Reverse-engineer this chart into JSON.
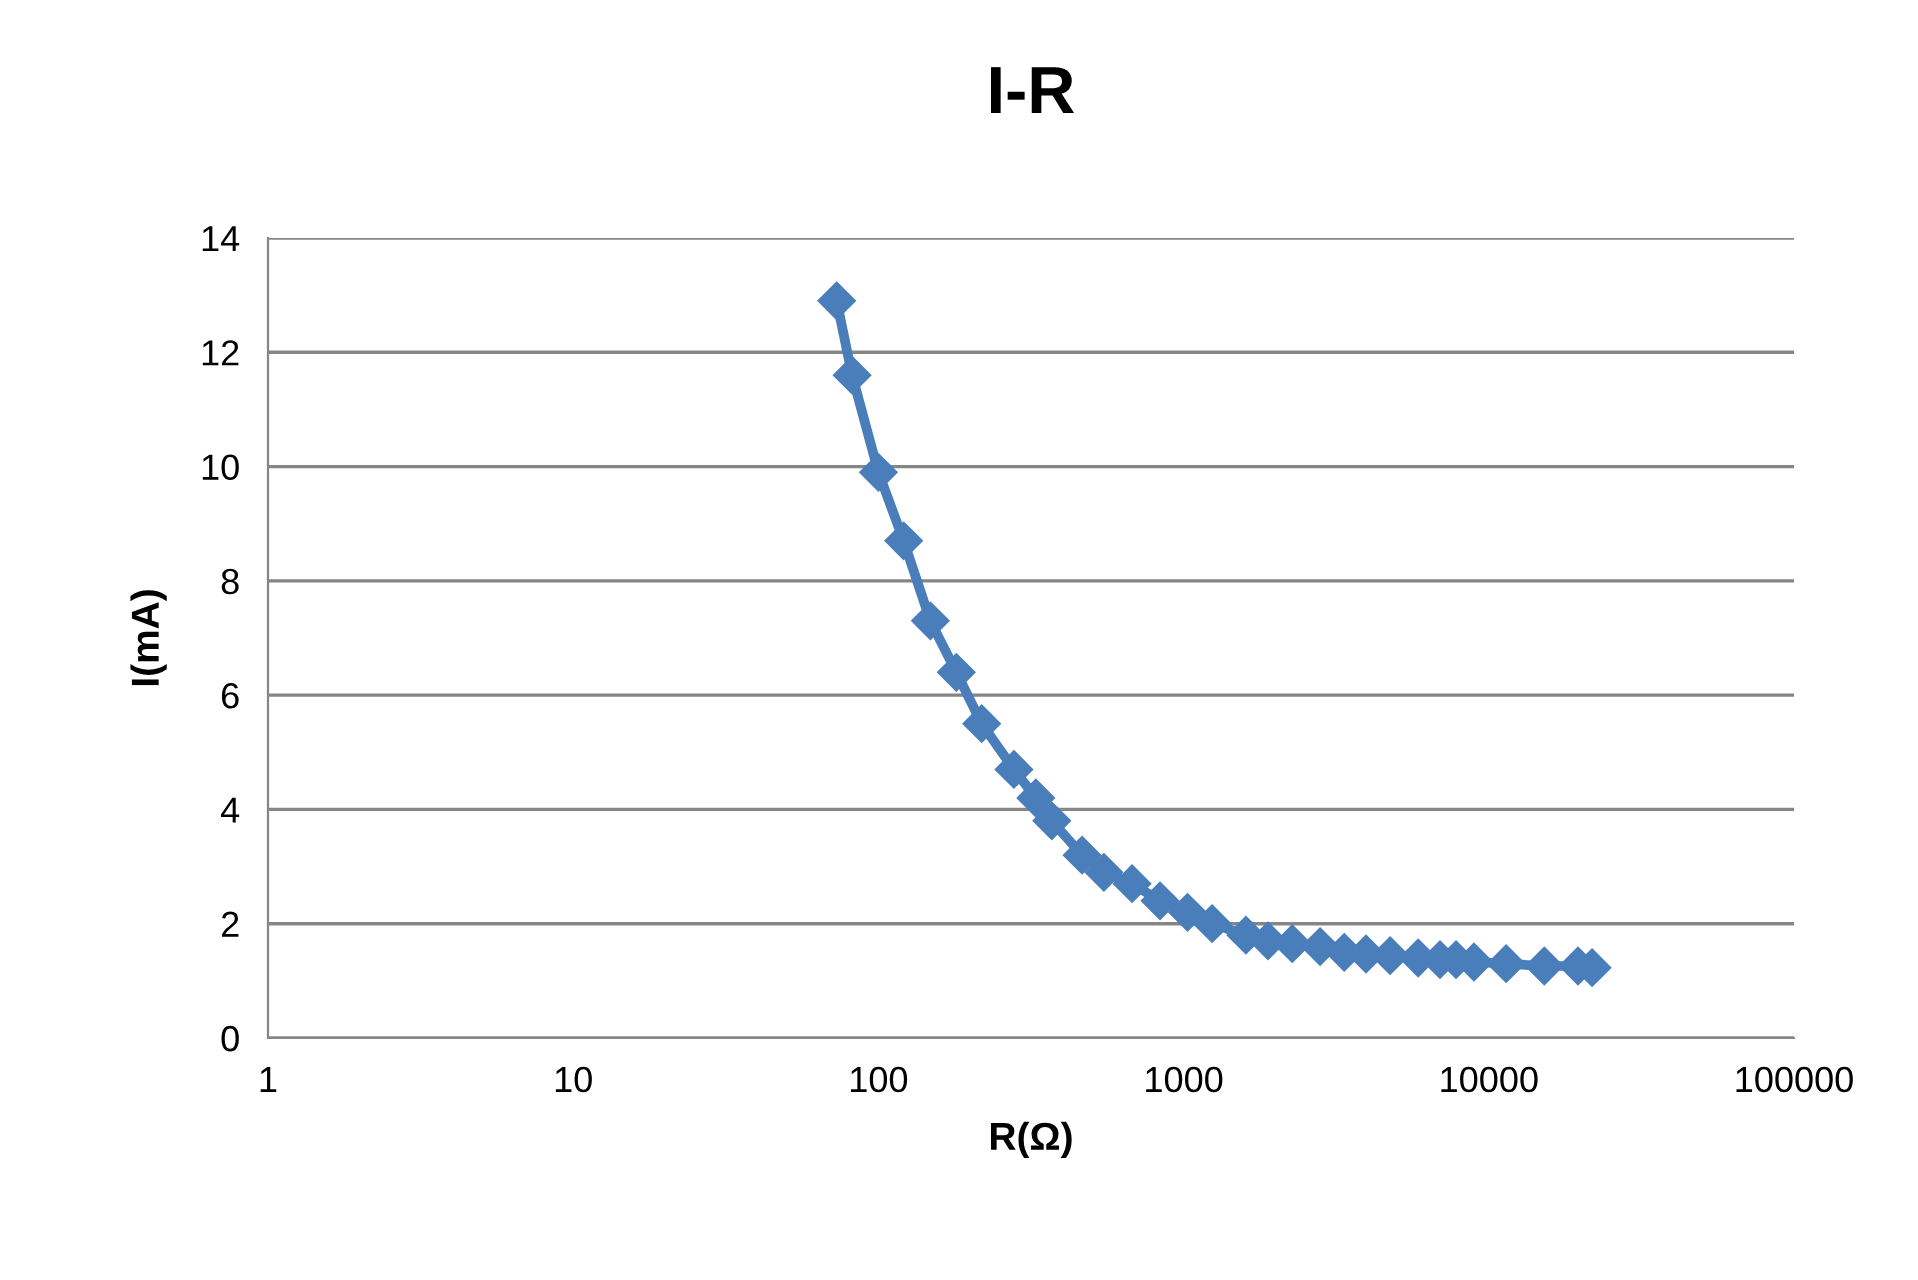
{
  "chart_data": {
    "type": "line",
    "title": "I-R",
    "xlabel": "R(Ω)",
    "ylabel": "I(mA)",
    "log": "x",
    "x": [
      73,
      82,
      100,
      121,
      148,
      180,
      218,
      278,
      328,
      370,
      465,
      548,
      678,
      837,
      1030,
      1240,
      1600,
      1890,
      2270,
      2800,
      3360,
      3960,
      4750,
      5870,
      6920,
      7810,
      8940,
      11400,
      15200,
      19600,
      21800
    ],
    "series": [
      {
        "color": "#4a7ebb",
        "values": [
          12.9,
          11.6,
          9.9,
          8.7,
          7.3,
          6.4,
          5.5,
          4.7,
          4.2,
          3.8,
          3.2,
          2.9,
          2.7,
          2.4,
          2.2,
          2.0,
          1.8,
          1.7,
          1.65,
          1.6,
          1.5,
          1.47,
          1.44,
          1.4,
          1.37,
          1.37,
          1.33,
          1.3,
          1.26,
          1.26,
          1.23
        ]
      }
    ],
    "xlim": [
      1,
      100000
    ],
    "xticks": [
      1,
      10,
      100,
      1000,
      10000,
      100000
    ],
    "ylim": [
      0,
      14
    ],
    "yticks": [
      0,
      2,
      4,
      6,
      8,
      10,
      12,
      14
    ],
    "grid": "y",
    "marker": "diamond",
    "line_style": "solid",
    "legend": false
  }
}
